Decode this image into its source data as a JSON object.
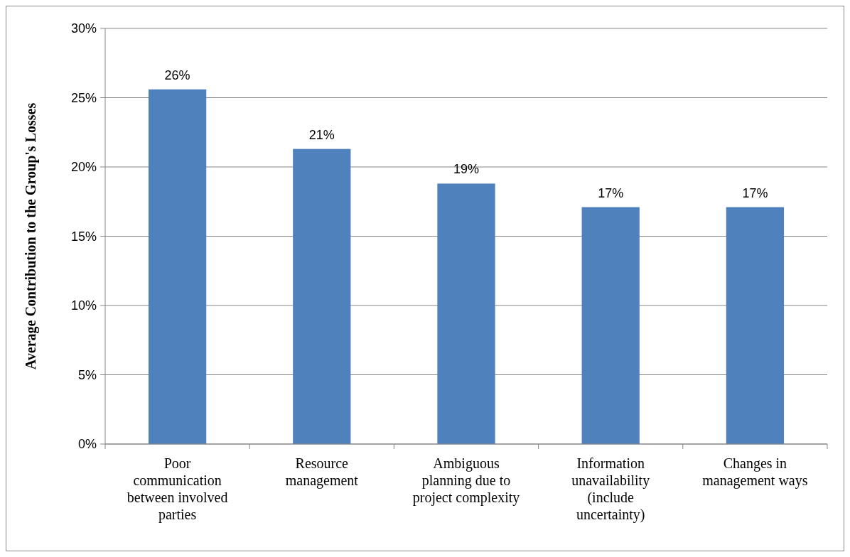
{
  "chart_data": {
    "type": "bar",
    "ylabel": "Average Contribution to the Group's Losses",
    "categories": [
      "Poor communication between involved parties",
      "Resource management",
      "Ambiguous planning due to project complexity",
      "Information unavailability (include uncertainty)",
      "Changes in management ways"
    ],
    "values": [
      25.6,
      21.3,
      18.8,
      17.1,
      17.1
    ],
    "value_labels": [
      "26%",
      "21%",
      "19%",
      "17%",
      "17%"
    ],
    "color": "#4f81bd",
    "ylim": [
      0,
      30
    ],
    "yticks": [
      {
        "value": 0,
        "label": "0%"
      },
      {
        "value": 5,
        "label": "5%"
      },
      {
        "value": 10,
        "label": "10%"
      },
      {
        "value": 15,
        "label": "15%"
      },
      {
        "value": 20,
        "label": "20%"
      },
      {
        "value": 25,
        "label": "25%"
      },
      {
        "value": 30,
        "label": "30%"
      }
    ],
    "grid": "y"
  }
}
